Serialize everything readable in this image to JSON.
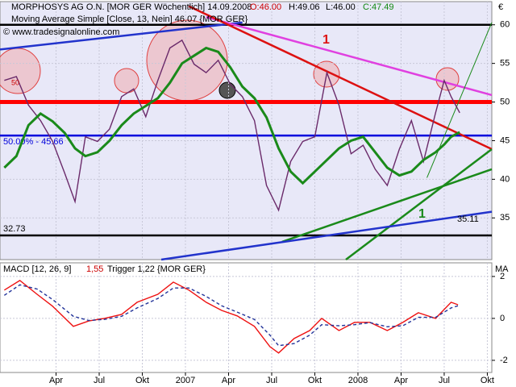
{
  "chart_data": [
    {
      "type": "line",
      "title": "MORPHOSYS AG O.N. [MOR GER  Wöchentlich] 14.09.2008",
      "quote": [
        "O:46.00",
        "H:49.06",
        "L:46.00",
        "C:47.49"
      ],
      "subtitle": "Moving Average Simple [Close, 13, Nein] 46.07 {MOR GER}",
      "source": "© www.tradesignalonline.com",
      "currency": "€",
      "xlim": [
        2005.925,
        2008.776
      ],
      "ylim": [
        29.6,
        63
      ],
      "yticks": [
        35,
        40,
        45,
        50,
        55,
        60
      ],
      "grid": true,
      "x": [
        2005.95,
        2006.02,
        2006.09,
        2006.16,
        2006.23,
        2006.3,
        2006.36,
        2006.42,
        2006.49,
        2006.56,
        2006.63,
        2006.7,
        2006.77,
        2006.84,
        2006.91,
        2006.98,
        2007.05,
        2007.12,
        2007.19,
        2007.26,
        2007.33,
        2007.4,
        2007.47,
        2007.54,
        2007.61,
        2007.68,
        2007.75,
        2007.82,
        2007.89,
        2007.96,
        2008.03,
        2008.1,
        2008.17,
        2008.24,
        2008.31,
        2008.38,
        2008.45,
        2008.5,
        2008.54,
        2008.59
      ],
      "series": [
        {
          "color": "#6a2a6a",
          "values": [
            52.8,
            53.3,
            49.6,
            47.6,
            44.9,
            40.8,
            37.1,
            45.5,
            44.9,
            46.5,
            50.7,
            51.7,
            48.1,
            52.8,
            57.0,
            58.0,
            54.9,
            53.8,
            55.4,
            52.3,
            50.7,
            47.6,
            39.2,
            36.0,
            42.3,
            44.9,
            45.5,
            53.8,
            49.6,
            43.3,
            44.4,
            41.3,
            39.2,
            43.9,
            47.6,
            42.3,
            48.6,
            52.8,
            50.7,
            48.6
          ]
        },
        {
          "color": "#1a8a1a",
          "values": [
            41.5,
            43,
            47,
            48.5,
            47.5,
            46,
            44,
            43,
            43.5,
            45,
            47,
            48.5,
            49.5,
            50.5,
            52.5,
            55,
            56,
            57,
            56.5,
            54.5,
            52,
            50.5,
            48,
            44,
            41,
            39.5,
            41,
            42.5,
            44,
            45,
            45.5,
            43.5,
            41.5,
            40.5,
            41,
            42.5,
            43.5,
            44.5,
            45.5,
            46.1
          ]
        }
      ],
      "hlines": [
        {
          "value": 60,
          "color": "#000000"
        },
        {
          "value": 50,
          "color": "#ff0000"
        },
        {
          "value": 45.66,
          "color": "#0000dd",
          "label": "50.00% - 45.66"
        },
        {
          "value": 32.73,
          "color": "#000000",
          "label": "32.73"
        }
      ],
      "trendlines": [
        {
          "color": "#2233cc",
          "x": [
            2005.925,
            2007.33
          ],
          "values": [
            56.8,
            60.3
          ]
        },
        {
          "color": "#e040e0",
          "x": [
            2007.12,
            2008.776
          ],
          "values": [
            61,
            50.9
          ]
        },
        {
          "color": "#dd1111",
          "x": [
            2007.02,
            2008.776
          ],
          "values": [
            62.4,
            43.9
          ]
        },
        {
          "color": "#1a8a1a",
          "x": [
            2007.93,
            2008.776
          ],
          "values": [
            29.6,
            43.9
          ]
        },
        {
          "color": "#1a8a1a",
          "x": [
            2007.56,
            2008.776
          ],
          "values": [
            31.9,
            41.3
          ]
        },
        {
          "color": "#2233cc",
          "x": [
            2006.86,
            2008.776
          ],
          "values": [
            29.6,
            35.8
          ]
        },
        {
          "color": "#1a8a1a",
          "x": [
            2008.4,
            2008.776
          ],
          "values": [
            40.2,
            60.3
          ]
        }
      ],
      "annotations": [
        "1",
        "1",
        "35.11",
        "50"
      ]
    },
    {
      "type": "line",
      "title": "MACD [12, 26, 9]",
      "macd_label": "1,55",
      "trigger_label": "Trigger 1,22",
      "symbol": "{MOR GER}",
      "corner_label": "MA",
      "xlim": [
        2005.925,
        2008.776
      ],
      "ylim": [
        -2.58,
        2.65
      ],
      "yticks": [
        2,
        0,
        -2
      ],
      "xticks": [
        {
          "value": 2006.25,
          "label": "Apr"
        },
        {
          "value": 2006.5,
          "label": "Jul"
        },
        {
          "value": 2006.75,
          "label": "Okt"
        },
        2007,
        {
          "value": 2007.25,
          "label": "Apr"
        },
        {
          "value": 2007.5,
          "label": "Jul"
        },
        {
          "value": 2007.75,
          "label": "Okt"
        },
        2008,
        {
          "value": 2008.25,
          "label": "Apr"
        },
        {
          "value": 2008.5,
          "label": "Jul"
        },
        {
          "value": 2008.75,
          "label": "Okt"
        }
      ],
      "x": [
        2005.95,
        2006.04,
        2006.14,
        2006.23,
        2006.35,
        2006.44,
        2006.53,
        2006.63,
        2006.72,
        2006.84,
        2006.93,
        2007.02,
        2007.12,
        2007.21,
        2007.3,
        2007.4,
        2007.49,
        2007.54,
        2007.63,
        2007.72,
        2007.79,
        2007.89,
        2007.98,
        2008.07,
        2008.17,
        2008.26,
        2008.35,
        2008.45,
        2008.54,
        2008.58
      ],
      "series": [
        {
          "color": "#ee1111",
          "values": [
            1.35,
            1.81,
            1.15,
            0.58,
            -0.38,
            -0.12,
            0,
            0.19,
            0.77,
            1.15,
            1.73,
            1.35,
            0.77,
            0.38,
            0.12,
            -0.38,
            -1.35,
            -1.65,
            -0.96,
            -0.58,
            0,
            -0.58,
            -0.19,
            -0.19,
            -0.58,
            -0.19,
            0.27,
            0,
            0.77,
            0.65
          ]
        },
        {
          "color": "#223399",
          "dashed": true,
          "values": [
            1.1,
            1.6,
            1.4,
            0.9,
            0.1,
            -0.1,
            -0.05,
            0.1,
            0.5,
            0.95,
            1.45,
            1.45,
            1.05,
            0.6,
            0.3,
            -0.05,
            -0.8,
            -1.3,
            -1.2,
            -0.8,
            -0.3,
            -0.35,
            -0.3,
            -0.2,
            -0.4,
            -0.35,
            0.05,
            0.05,
            0.5,
            0.6
          ]
        }
      ]
    }
  ]
}
